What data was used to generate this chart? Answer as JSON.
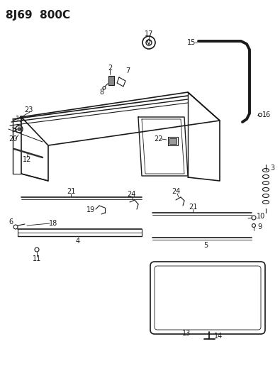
{
  "title": "8J69  800C",
  "bg_color": "#ffffff",
  "line_color": "#1a1a1a",
  "title_fontsize": 11,
  "label_fontsize": 7,
  "fig_width": 3.95,
  "fig_height": 5.33,
  "dpi": 100
}
